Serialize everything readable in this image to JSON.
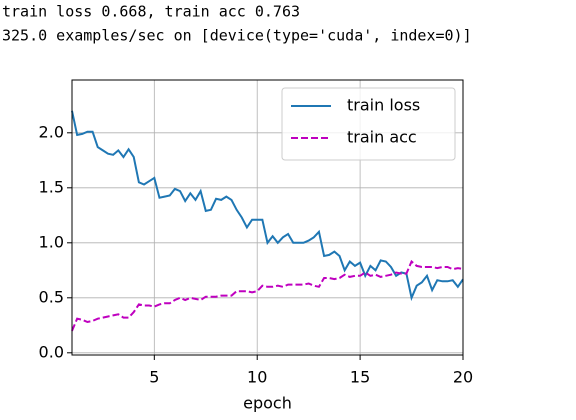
{
  "header": {
    "lines": [
      "train loss 0.668, train acc 0.763",
      "325.0 examples/sec on [device(type='cuda', index=0)]"
    ]
  },
  "chart_data": {
    "type": "line",
    "xlabel": "epoch",
    "x": [
      1.0,
      1.25,
      1.5,
      1.75,
      2.0,
      2.25,
      2.5,
      2.75,
      3.0,
      3.25,
      3.5,
      3.75,
      4.0,
      4.25,
      4.5,
      4.75,
      5.0,
      5.25,
      5.5,
      5.75,
      6.0,
      6.25,
      6.5,
      6.75,
      7.0,
      7.25,
      7.5,
      7.75,
      8.0,
      8.25,
      8.5,
      8.75,
      9.0,
      9.25,
      9.5,
      9.75,
      10.0,
      10.25,
      10.5,
      10.75,
      11.0,
      11.25,
      11.5,
      11.75,
      12.0,
      12.25,
      12.5,
      12.75,
      13.0,
      13.25,
      13.5,
      13.75,
      14.0,
      14.25,
      14.5,
      14.75,
      15.0,
      15.25,
      15.5,
      15.75,
      16.0,
      16.25,
      16.5,
      16.75,
      17.0,
      17.25,
      17.5,
      17.75,
      18.0,
      18.25,
      18.5,
      18.75,
      19.0,
      19.25,
      19.5,
      19.75,
      20.0
    ],
    "series": [
      {
        "name": "train loss",
        "color": "#1f77b4",
        "linestyle": "solid",
        "values": [
          2.2,
          1.98,
          1.99,
          2.01,
          2.01,
          1.87,
          1.84,
          1.81,
          1.8,
          1.84,
          1.78,
          1.85,
          1.78,
          1.55,
          1.53,
          1.56,
          1.59,
          1.41,
          1.42,
          1.43,
          1.49,
          1.47,
          1.38,
          1.45,
          1.39,
          1.47,
          1.29,
          1.3,
          1.4,
          1.39,
          1.42,
          1.39,
          1.3,
          1.23,
          1.14,
          1.21,
          1.21,
          1.21,
          1.0,
          1.06,
          1.0,
          1.05,
          1.08,
          1.0,
          1.0,
          1.0,
          1.02,
          1.05,
          1.1,
          0.88,
          0.89,
          0.92,
          0.88,
          0.75,
          0.83,
          0.79,
          0.82,
          0.7,
          0.79,
          0.75,
          0.84,
          0.83,
          0.78,
          0.7,
          0.73,
          0.72,
          0.5,
          0.61,
          0.64,
          0.7,
          0.57,
          0.66,
          0.65,
          0.65,
          0.66,
          0.6,
          0.668
        ]
      },
      {
        "name": "train acc",
        "color": "#bf00bf",
        "linestyle": "dashed",
        "values": [
          0.2,
          0.31,
          0.3,
          0.28,
          0.29,
          0.31,
          0.32,
          0.33,
          0.34,
          0.35,
          0.32,
          0.32,
          0.37,
          0.44,
          0.43,
          0.43,
          0.42,
          0.44,
          0.45,
          0.45,
          0.48,
          0.5,
          0.48,
          0.5,
          0.49,
          0.48,
          0.51,
          0.51,
          0.51,
          0.52,
          0.52,
          0.52,
          0.56,
          0.56,
          0.56,
          0.55,
          0.56,
          0.61,
          0.6,
          0.6,
          0.61,
          0.6,
          0.62,
          0.62,
          0.62,
          0.62,
          0.63,
          0.61,
          0.6,
          0.68,
          0.68,
          0.67,
          0.68,
          0.71,
          0.69,
          0.7,
          0.7,
          0.73,
          0.7,
          0.71,
          0.69,
          0.7,
          0.71,
          0.73,
          0.72,
          0.72,
          0.83,
          0.79,
          0.78,
          0.78,
          0.78,
          0.77,
          0.78,
          0.78,
          0.76,
          0.77,
          0.763
        ]
      }
    ],
    "xlim": [
      1,
      20
    ],
    "xticks": [
      5,
      10,
      15,
      20
    ],
    "ylim": [
      -0.02,
      2.48
    ],
    "yticks": [
      {
        "value": 0,
        "label": "0.0"
      },
      {
        "value": 0.5,
        "label": "0.5"
      },
      {
        "value": 1,
        "label": "1.0"
      },
      {
        "value": 1.5,
        "label": "1.5"
      },
      {
        "value": 2,
        "label": "2.0"
      }
    ],
    "grid": true,
    "legend": "upper right"
  }
}
